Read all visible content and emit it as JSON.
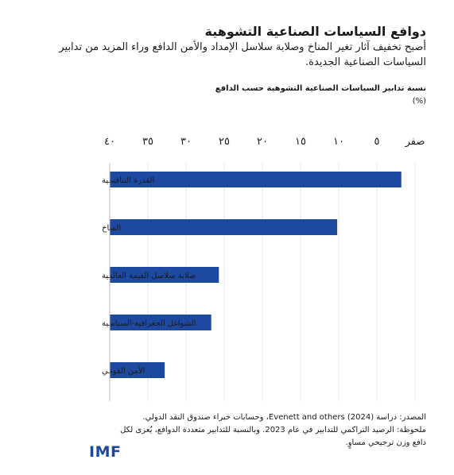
{
  "title": "دوافع السياسات الصناعية التشوهية",
  "subtitle": "أصبح تخفيف آثار تغير المناخ وصلابة سلاسل الإمداد والأمن الدافع وراء المزيد من تدابير السياسات الصناعية الجديدة.",
  "chart_data": {
    "type": "bar",
    "orientation": "horizontal",
    "ylabel": "نسبة تدابير السياسات الصناعية التشوهية حسب الدافع",
    "unit": "(%)",
    "categories": [
      "القدرة التنافسية",
      "المناخ",
      "صلابة سلاسل القيمة العالمية",
      "الشواغل الجغرافية-السياسية",
      "الأمن القومي"
    ],
    "values": [
      38.2,
      29.8,
      14.3,
      13.3,
      7.2
    ],
    "xlim": [
      0,
      40
    ],
    "ticks": [
      0,
      5,
      10,
      15,
      20,
      25,
      30,
      35,
      40
    ],
    "tick_labels": [
      "صفر",
      "٥",
      "١٠",
      "١٥",
      "٢٠",
      "٢٥",
      "٣٠",
      "٣٥",
      "٤٠"
    ],
    "x_reversed": true,
    "bar_color": "#1d4aa0",
    "grid_color": "#e6e6e6",
    "grid": true
  },
  "notes": {
    "source": "المصدر: دراسة (2024) Evenett and others، وحسابات خبراء صندوق النقد الدولي.",
    "note_line1": "ملحوظة: الرصيد التراكمي للتدابير في عام 2023. وبالنسبة للتدابير متعددة الدوافع، يُعزى لكل",
    "note_line2": "دافع وزن ترجيحي مساوٍ."
  },
  "logo": "IMF"
}
